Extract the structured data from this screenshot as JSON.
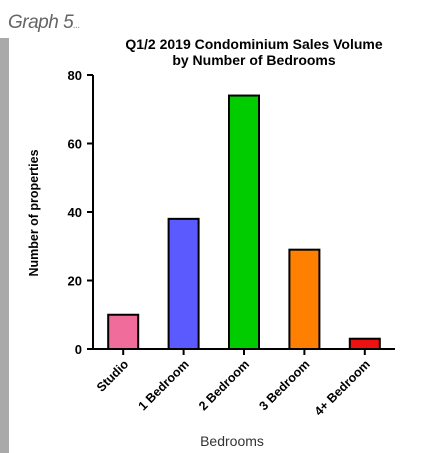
{
  "figure_label": "Graph 5",
  "figure_label_suffix": "...",
  "chart_data": {
    "type": "bar",
    "title_line1": "Q1/2 2019 Condominium Sales Volume",
    "title_line2": "by Number of Bedrooms",
    "categories": [
      "Studio",
      "1 Bedroom",
      "2 Bedroom",
      "3 Bedroom",
      "4+ Bedroom"
    ],
    "values": [
      10,
      38,
      74,
      29,
      3
    ],
    "colors": [
      "#f06c9b",
      "#5a5aff",
      "#00cc00",
      "#ff8000",
      "#ee1111"
    ],
    "xlabel": "Bedrooms",
    "ylabel": "Number of properties",
    "ylim": [
      0,
      80
    ],
    "yticks": [
      "0",
      "20",
      "40",
      "60",
      "80"
    ],
    "grid": false,
    "legend": "none"
  }
}
